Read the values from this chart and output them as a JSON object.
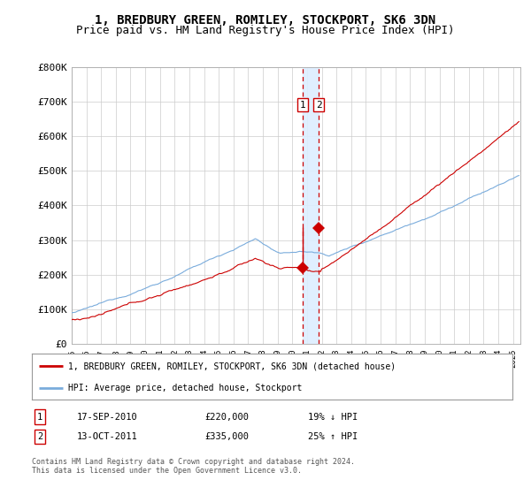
{
  "title": "1, BREDBURY GREEN, ROMILEY, STOCKPORT, SK6 3DN",
  "subtitle": "Price paid vs. HM Land Registry's House Price Index (HPI)",
  "title_fontsize": 10,
  "subtitle_fontsize": 9,
  "xlim_start": 1995.0,
  "xlim_end": 2025.5,
  "ylim": [
    0,
    800000
  ],
  "yticks": [
    0,
    100000,
    200000,
    300000,
    400000,
    500000,
    600000,
    700000,
    800000
  ],
  "ytick_labels": [
    "£0",
    "£100K",
    "£200K",
    "£300K",
    "£400K",
    "£500K",
    "£600K",
    "£700K",
    "£800K"
  ],
  "xtick_years": [
    1995,
    1996,
    1997,
    1998,
    1999,
    2000,
    2001,
    2002,
    2003,
    2004,
    2005,
    2006,
    2007,
    2008,
    2009,
    2010,
    2011,
    2012,
    2013,
    2014,
    2015,
    2016,
    2017,
    2018,
    2019,
    2020,
    2021,
    2022,
    2023,
    2024,
    2025
  ],
  "sale1_x": 2010.71,
  "sale1_y": 220000,
  "sale2_x": 2011.79,
  "sale2_y": 335000,
  "sale1_label": "1",
  "sale2_label": "2",
  "vline1_x": 2010.71,
  "vline2_x": 2011.79,
  "vband_color": "#ddeeff",
  "vline_color": "#cc0000",
  "hpi_line_color": "#7aacdc",
  "price_line_color": "#cc0000",
  "marker_color": "#cc0000",
  "legend_label1": "1, BREDBURY GREEN, ROMILEY, STOCKPORT, SK6 3DN (detached house)",
  "legend_label2": "HPI: Average price, detached house, Stockport",
  "table_row1": [
    "1",
    "17-SEP-2010",
    "£220,000",
    "19% ↓ HPI"
  ],
  "table_row2": [
    "2",
    "13-OCT-2011",
    "£335,000",
    "25% ↑ HPI"
  ],
  "footer": "Contains HM Land Registry data © Crown copyright and database right 2024.\nThis data is licensed under the Open Government Licence v3.0.",
  "background_color": "#ffffff",
  "grid_color": "#cccccc"
}
